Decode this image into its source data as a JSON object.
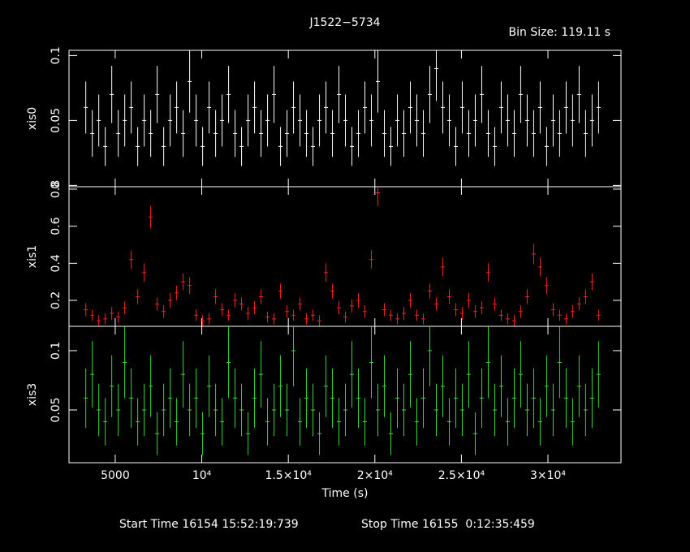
{
  "chart_data": {
    "type": "errorbar",
    "title": "J1522−5734",
    "subtitle": "Bin Size: 119.11 s",
    "xlabel": "Time (s)",
    "xlim": [
      2330,
      34220
    ],
    "xticks": [
      5000,
      {
        "value": 10000,
        "label": "10⁴"
      },
      {
        "value": 15000,
        "label": "1.5×10⁴"
      },
      {
        "value": 20000,
        "label": "2×10⁴"
      },
      {
        "value": 25000,
        "label": "2.5×10⁴"
      },
      {
        "value": 30000,
        "label": "3×10⁴"
      }
    ],
    "x": [
      3300,
      3675,
      4050,
      4425,
      4800,
      5175,
      5550,
      5925,
      6300,
      6675,
      7050,
      7425,
      7800,
      8175,
      8550,
      8925,
      9300,
      9675,
      10050,
      10425,
      10800,
      11175,
      11550,
      11925,
      12300,
      12675,
      13050,
      13425,
      13800,
      14175,
      14550,
      14925,
      15300,
      15675,
      16050,
      16425,
      16800,
      17175,
      17550,
      17925,
      18300,
      18675,
      19050,
      19425,
      19800,
      20175,
      20550,
      20925,
      21300,
      21675,
      22050,
      22425,
      22800,
      23175,
      23550,
      23925,
      24300,
      24675,
      25050,
      25425,
      25800,
      26175,
      26550,
      26925,
      27300,
      27675,
      28050,
      28425,
      28800,
      29175,
      29550,
      29925,
      30300,
      30675,
      31050,
      31425,
      31800,
      32175,
      32550,
      32925
    ],
    "panels": [
      {
        "name": "xis0",
        "color": "#ffffff",
        "ylim": [
          -0.001,
          0.104
        ],
        "yticks": [
          0,
          0.05,
          0.1
        ],
        "values": [
          0.06,
          0.04,
          0.05,
          0.03,
          0.07,
          0.04,
          0.05,
          0.06,
          0.03,
          0.05,
          0.04,
          0.07,
          0.03,
          0.05,
          0.06,
          0.04,
          0.08,
          0.05,
          0.03,
          0.06,
          0.04,
          0.05,
          0.07,
          0.04,
          0.03,
          0.05,
          0.06,
          0.04,
          0.05,
          0.07,
          0.03,
          0.04,
          0.06,
          0.05,
          0.04,
          0.03,
          0.05,
          0.06,
          0.04,
          0.07,
          0.05,
          0.03,
          0.04,
          0.06,
          0.05,
          0.08,
          0.04,
          0.03,
          0.05,
          0.04,
          0.06,
          0.05,
          0.04,
          0.07,
          0.09,
          0.06,
          0.05,
          0.03,
          0.06,
          0.04,
          0.05,
          0.07,
          0.04,
          0.03,
          0.06,
          0.05,
          0.04,
          0.07,
          0.05,
          0.04,
          0.06,
          0.03,
          0.05,
          0.04,
          0.06,
          0.05,
          0.07,
          0.04,
          0.05,
          0.06
        ],
        "errors": [
          0.02,
          0.018,
          0.02,
          0.015,
          0.022,
          0.018,
          0.02,
          0.02,
          0.015,
          0.02,
          0.018,
          0.022,
          0.015,
          0.02,
          0.02,
          0.018,
          0.024,
          0.02,
          0.015,
          0.02,
          0.018,
          0.02,
          0.022,
          0.018,
          0.015,
          0.02,
          0.02,
          0.018,
          0.02,
          0.022,
          0.015,
          0.018,
          0.02,
          0.02,
          0.018,
          0.015,
          0.02,
          0.02,
          0.018,
          0.022,
          0.02,
          0.015,
          0.018,
          0.02,
          0.02,
          0.024,
          0.018,
          0.015,
          0.02,
          0.018,
          0.02,
          0.02,
          0.018,
          0.022,
          0.025,
          0.02,
          0.02,
          0.015,
          0.02,
          0.018,
          0.02,
          0.022,
          0.018,
          0.015,
          0.02,
          0.02,
          0.018,
          0.022,
          0.02,
          0.018,
          0.02,
          0.015,
          0.02,
          0.018,
          0.02,
          0.02,
          0.022,
          0.018,
          0.02,
          0.02
        ]
      },
      {
        "name": "xis1",
        "color": "#ff2020",
        "ylim": [
          0.06,
          0.813
        ],
        "yticks": [
          0.2,
          0.4,
          0.6,
          0.8
        ],
        "values": [
          0.15,
          0.12,
          0.09,
          0.1,
          0.13,
          0.11,
          0.16,
          0.42,
          0.22,
          0.35,
          0.65,
          0.18,
          0.14,
          0.2,
          0.24,
          0.3,
          0.28,
          0.12,
          0.09,
          0.1,
          0.22,
          0.15,
          0.12,
          0.2,
          0.18,
          0.13,
          0.16,
          0.22,
          0.11,
          0.1,
          0.25,
          0.14,
          0.12,
          0.18,
          0.1,
          0.12,
          0.09,
          0.35,
          0.25,
          0.16,
          0.11,
          0.17,
          0.2,
          0.14,
          0.42,
          0.78,
          0.15,
          0.12,
          0.1,
          0.13,
          0.2,
          0.12,
          0.1,
          0.25,
          0.18,
          0.38,
          0.22,
          0.15,
          0.13,
          0.2,
          0.14,
          0.16,
          0.35,
          0.18,
          0.12,
          0.1,
          0.09,
          0.14,
          0.22,
          0.45,
          0.38,
          0.28,
          0.15,
          0.12,
          0.1,
          0.14,
          0.18,
          0.22,
          0.3,
          0.12
        ],
        "errors": [
          0.035,
          0.03,
          0.03,
          0.03,
          0.035,
          0.03,
          0.035,
          0.05,
          0.04,
          0.05,
          0.06,
          0.035,
          0.035,
          0.04,
          0.04,
          0.045,
          0.045,
          0.03,
          0.03,
          0.03,
          0.04,
          0.035,
          0.03,
          0.04,
          0.035,
          0.035,
          0.035,
          0.04,
          0.03,
          0.03,
          0.04,
          0.035,
          0.03,
          0.035,
          0.03,
          0.03,
          0.03,
          0.05,
          0.04,
          0.035,
          0.03,
          0.035,
          0.04,
          0.035,
          0.05,
          0.07,
          0.035,
          0.03,
          0.03,
          0.035,
          0.04,
          0.03,
          0.03,
          0.04,
          0.035,
          0.05,
          0.04,
          0.035,
          0.035,
          0.04,
          0.035,
          0.035,
          0.05,
          0.035,
          0.03,
          0.03,
          0.03,
          0.035,
          0.04,
          0.055,
          0.05,
          0.045,
          0.035,
          0.03,
          0.03,
          0.035,
          0.035,
          0.04,
          0.045,
          0.03
        ]
      },
      {
        "name": "xis3",
        "color": "#33dd33",
        "ylim": [
          0.0055,
          0.1205
        ],
        "yticks": [
          0.05,
          0.1
        ],
        "values": [
          0.06,
          0.08,
          0.05,
          0.04,
          0.07,
          0.05,
          0.09,
          0.06,
          0.04,
          0.05,
          0.07,
          0.03,
          0.05,
          0.06,
          0.04,
          0.08,
          0.05,
          0.06,
          0.03,
          0.07,
          0.05,
          0.04,
          0.09,
          0.06,
          0.05,
          0.03,
          0.06,
          0.08,
          0.04,
          0.05,
          0.07,
          0.05,
          0.1,
          0.04,
          0.06,
          0.05,
          0.03,
          0.07,
          0.06,
          0.04,
          0.05,
          0.08,
          0.06,
          0.04,
          0.09,
          0.05,
          0.07,
          0.03,
          0.06,
          0.05,
          0.08,
          0.04,
          0.06,
          0.1,
          0.05,
          0.07,
          0.04,
          0.06,
          0.05,
          0.08,
          0.03,
          0.06,
          0.09,
          0.05,
          0.07,
          0.04,
          0.06,
          0.08,
          0.05,
          0.06,
          0.04,
          0.07,
          0.05,
          0.09,
          0.06,
          0.04,
          0.07,
          0.05,
          0.06,
          0.08
        ],
        "errors": [
          0.025,
          0.028,
          0.022,
          0.02,
          0.026,
          0.022,
          0.03,
          0.025,
          0.02,
          0.022,
          0.026,
          0.018,
          0.022,
          0.025,
          0.02,
          0.028,
          0.022,
          0.025,
          0.018,
          0.026,
          0.022,
          0.02,
          0.03,
          0.025,
          0.022,
          0.018,
          0.025,
          0.028,
          0.02,
          0.022,
          0.026,
          0.022,
          0.03,
          0.02,
          0.025,
          0.022,
          0.018,
          0.026,
          0.025,
          0.02,
          0.022,
          0.028,
          0.025,
          0.02,
          0.03,
          0.022,
          0.026,
          0.018,
          0.025,
          0.022,
          0.028,
          0.02,
          0.025,
          0.03,
          0.022,
          0.026,
          0.02,
          0.025,
          0.022,
          0.028,
          0.018,
          0.025,
          0.03,
          0.022,
          0.026,
          0.02,
          0.025,
          0.028,
          0.022,
          0.025,
          0.02,
          0.026,
          0.022,
          0.03,
          0.025,
          0.02,
          0.026,
          0.022,
          0.025,
          0.028
        ]
      }
    ]
  },
  "footer": [
    "Start Time 16154 15:52:19:739",
    "Stop Time 16155  0:12:35:459"
  ]
}
